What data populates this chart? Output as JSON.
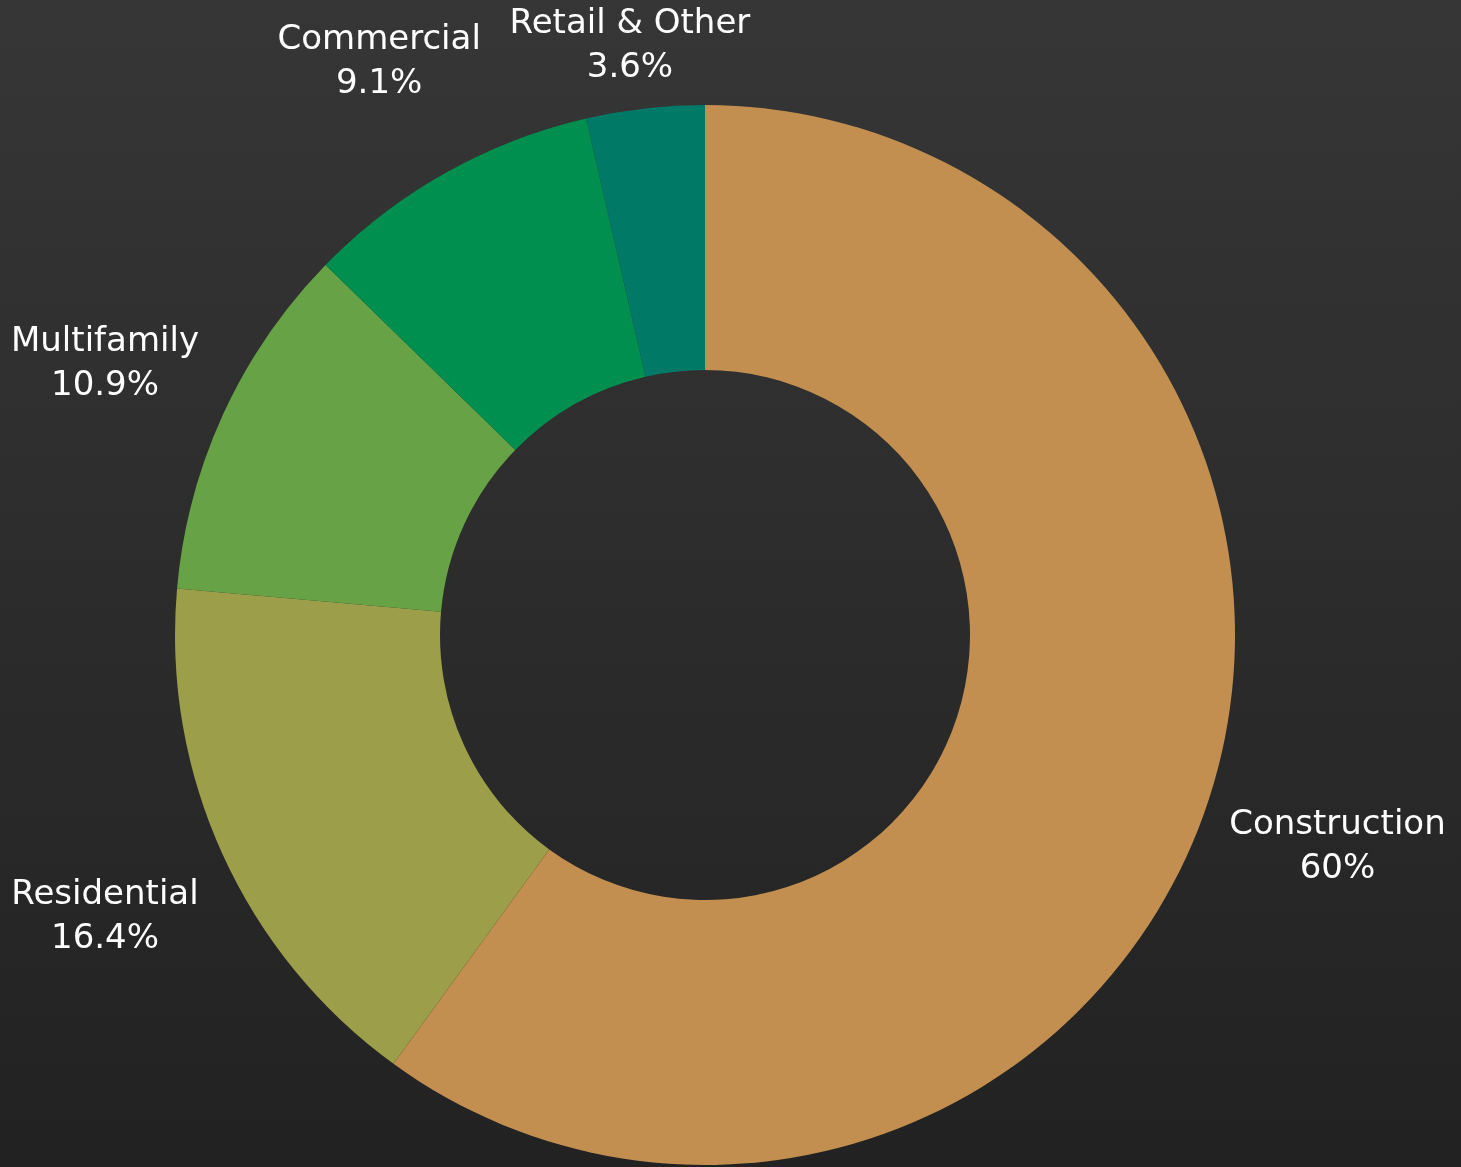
{
  "chart_data": {
    "type": "donut",
    "categories": [
      "Construction",
      "Residential",
      "Multifamily",
      "Commercial",
      "Retail & Other"
    ],
    "values": [
      60,
      16.4,
      10.9,
      9.1,
      3.6
    ],
    "value_labels": [
      "60%",
      "16.4%",
      "10.9%",
      "9.1%",
      "3.6%"
    ],
    "colors": [
      "#c28f51",
      "#9c9e4a",
      "#67a346",
      "#008f4f",
      "#007a66"
    ]
  }
}
